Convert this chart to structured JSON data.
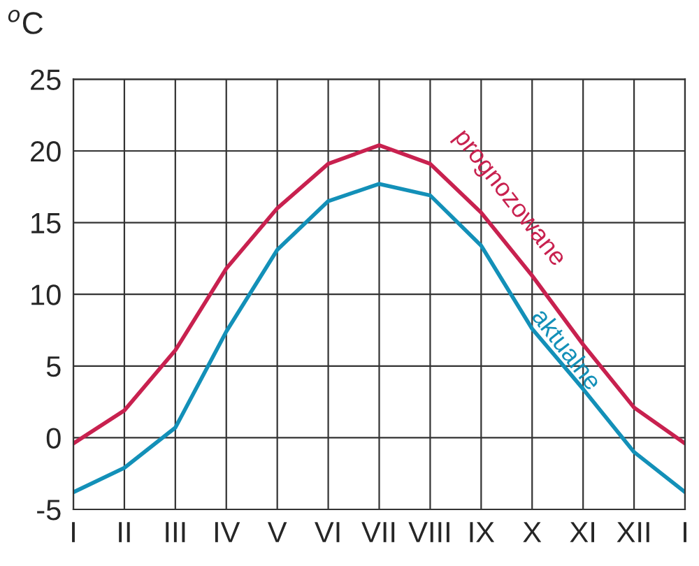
{
  "chart_data": {
    "type": "line",
    "ylabel": "$^{o}$C",
    "categories": [
      "I",
      "II",
      "III",
      "IV",
      "V",
      "VI",
      "VII",
      "VIII",
      "IX",
      "X",
      "XI",
      "XII",
      "I"
    ],
    "series": [
      {
        "name": "prognozowane",
        "color": "#c8214f",
        "values": [
          -0.4,
          1.9,
          6.1,
          11.8,
          16,
          19.1,
          20.4,
          19.1,
          15.7,
          11.3,
          6.5,
          2.1,
          -0.4
        ]
      },
      {
        "name": "aktualne",
        "color": "#1390b8",
        "values": [
          -3.8,
          -2.1,
          0.7,
          7.4,
          13.1,
          16.5,
          17.7,
          16.9,
          13.4,
          7.6,
          3.4,
          -1,
          -3.8
        ]
      }
    ],
    "ylim": [
      -5,
      25
    ],
    "yticks": [
      -5,
      0,
      5,
      10,
      15,
      20,
      25
    ],
    "grid": true,
    "legend": false,
    "marker": "none",
    "line_style": "solid"
  }
}
